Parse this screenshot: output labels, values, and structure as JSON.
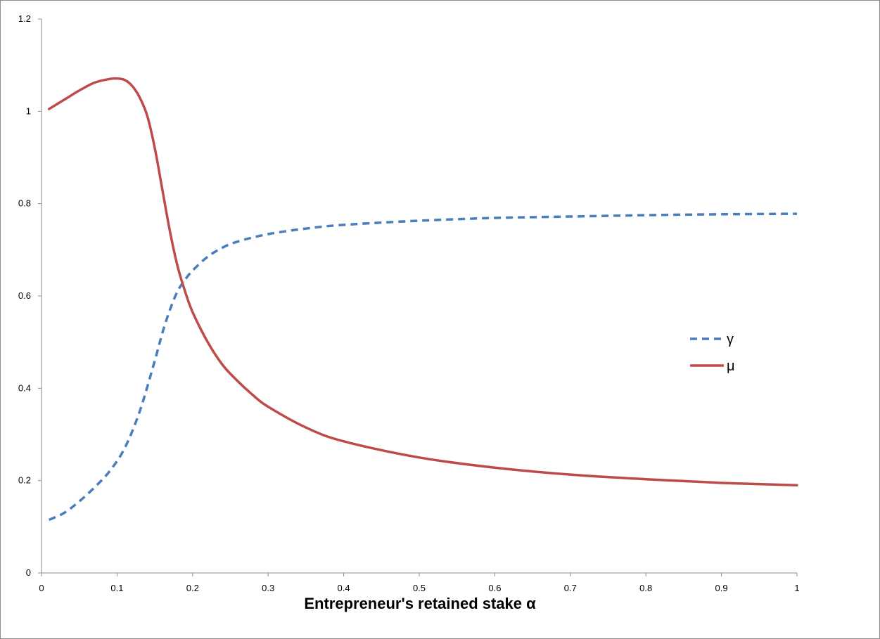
{
  "chart_data": {
    "type": "line",
    "title": "",
    "xlabel": "Entrepreneur's retained stake α",
    "ylabel": "",
    "xlim": [
      0,
      1
    ],
    "ylim": [
      0,
      1.2
    ],
    "x_ticks": [
      "0",
      "0.1",
      "0.2",
      "0.3",
      "0.4",
      "0.5",
      "0.6",
      "0.7",
      "0.8",
      "0.9",
      "1"
    ],
    "y_ticks": [
      "0",
      "0.2",
      "0.4",
      "0.6",
      "0.8",
      "1",
      "1.2"
    ],
    "grid": false,
    "legend_position": "right",
    "series": [
      {
        "name": "γ",
        "color": "#4a7ebb",
        "style": "dashed",
        "x": [
          0.01,
          0.03,
          0.05,
          0.07,
          0.09,
          0.11,
          0.13,
          0.15,
          0.16,
          0.17,
          0.18,
          0.19,
          0.2,
          0.22,
          0.24,
          0.26,
          0.3,
          0.35,
          0.4,
          0.5,
          0.6,
          0.7,
          0.8,
          0.9,
          1.0
        ],
        "values": [
          0.115,
          0.13,
          0.155,
          0.185,
          0.22,
          0.27,
          0.35,
          0.46,
          0.52,
          0.57,
          0.61,
          0.635,
          0.655,
          0.685,
          0.705,
          0.718,
          0.734,
          0.746,
          0.754,
          0.763,
          0.769,
          0.772,
          0.775,
          0.777,
          0.778
        ]
      },
      {
        "name": "μ",
        "color": "#be4b48",
        "style": "solid",
        "x": [
          0.01,
          0.03,
          0.05,
          0.07,
          0.09,
          0.1,
          0.11,
          0.12,
          0.13,
          0.14,
          0.15,
          0.16,
          0.17,
          0.18,
          0.19,
          0.2,
          0.22,
          0.24,
          0.26,
          0.28,
          0.3,
          0.35,
          0.4,
          0.5,
          0.6,
          0.7,
          0.8,
          0.9,
          1.0
        ],
        "values": [
          1.005,
          1.025,
          1.045,
          1.062,
          1.07,
          1.071,
          1.068,
          1.055,
          1.03,
          0.99,
          0.92,
          0.83,
          0.74,
          0.665,
          0.61,
          0.565,
          0.5,
          0.45,
          0.415,
          0.385,
          0.36,
          0.315,
          0.285,
          0.25,
          0.228,
          0.213,
          0.203,
          0.195,
          0.19
        ]
      }
    ]
  }
}
